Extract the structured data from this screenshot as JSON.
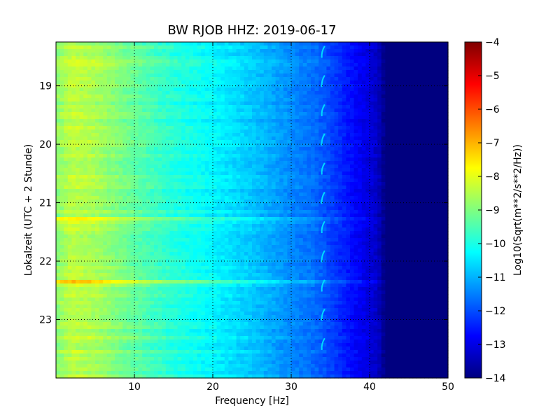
{
  "chart_data": {
    "type": "heatmap",
    "title": "BW RJOB HHZ: 2019-06-17",
    "xlabel": "Frequency [Hz]",
    "ylabel": "Lokalzeit (UTC + 2 Stunde)",
    "xlim": [
      0,
      50
    ],
    "ylim": [
      18.25,
      24.0
    ],
    "y_inverted": true,
    "x_ticks": [
      10,
      20,
      30,
      40,
      50
    ],
    "y_ticks": [
      19,
      20,
      21,
      22,
      23
    ],
    "grid": true,
    "grid_style": "dotted",
    "colorbar": {
      "label": "Log10(Sqrt(m**2/s**2/Hz))",
      "range": [
        -14,
        -4
      ],
      "ticks": [
        -4,
        -5,
        -6,
        -7,
        -8,
        -9,
        -10,
        -11,
        -12,
        -13,
        -14
      ],
      "colormap": "jet"
    },
    "frequency_profile": {
      "frequency_hz": [
        0,
        2,
        5,
        10,
        15,
        20,
        25,
        30,
        33,
        36,
        39,
        41,
        42,
        50
      ],
      "log10_psd": [
        -8.9,
        -8.4,
        -8.6,
        -9.3,
        -9.9,
        -10.3,
        -10.8,
        -11.4,
        -11.7,
        -12.3,
        -12.9,
        -13.3,
        -14.0,
        -14.0
      ]
    },
    "loud_bands": [
      {
        "time_h": 18.6,
        "log10_psd_peak": -8.0
      },
      {
        "time_h": 21.28,
        "log10_psd_peak": -7.5
      },
      {
        "time_h": 22.34,
        "log10_psd_peak": -7.0
      },
      {
        "time_h": 23.25,
        "log10_psd_peak": -8.4
      }
    ],
    "tonal_line_hz": 34.0,
    "tonal_line_times_h": [
      18.5,
      19.0,
      19.5,
      20.0,
      20.5,
      21.0,
      21.5,
      22.0,
      22.5,
      23.0,
      23.5
    ]
  }
}
